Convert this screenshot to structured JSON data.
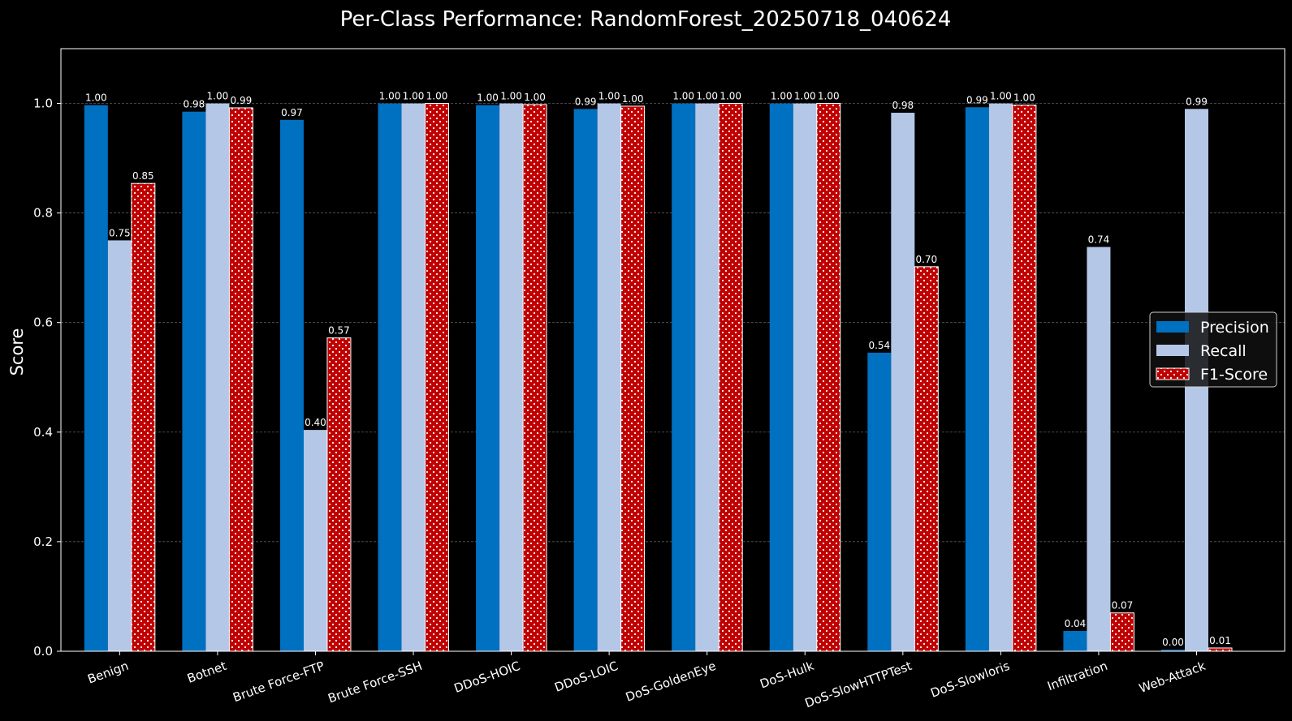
{
  "chart_data": {
    "type": "bar",
    "title": "Per-Class Performance: RandomForest_20250718_040624",
    "xlabel": "",
    "ylabel": "Score",
    "ylim": [
      0,
      1.1
    ],
    "yticks": [
      0.0,
      0.2,
      0.4,
      0.6,
      0.8,
      1.0
    ],
    "ytick_labels": [
      "0.0",
      "0.2",
      "0.4",
      "0.6",
      "0.8",
      "1.0"
    ],
    "grid": "horizontal dashed",
    "legend_position": "center-right",
    "categories": [
      "Benign",
      "Botnet",
      "Brute Force-FTP",
      "Brute Force-SSH",
      "DDoS-HOIC",
      "DDoS-LOIC",
      "DoS-GoldenEye",
      "DoS-Hulk",
      "DoS-SlowHTTPTest",
      "DoS-Slowloris",
      "Infiltration",
      "Web-Attack"
    ],
    "series": [
      {
        "name": "Precision",
        "color": "#0070c0",
        "pattern": "solid",
        "values": [
          0.997,
          0.985,
          0.97,
          1.0,
          0.997,
          0.99,
          1.0,
          1.0,
          0.545,
          0.993,
          0.037,
          0.003
        ],
        "labels": [
          "1.00",
          "0.98",
          "0.97",
          "1.00",
          "1.00",
          "0.99",
          "1.00",
          "1.00",
          "0.54",
          "0.99",
          "0.04",
          "0.00"
        ]
      },
      {
        "name": "Recall",
        "color": "#b4c7e7",
        "pattern": "solid",
        "values": [
          0.75,
          1.0,
          0.404,
          1.0,
          1.0,
          1.0,
          1.0,
          1.0,
          0.983,
          1.0,
          0.738,
          0.99
        ],
        "labels": [
          "0.75",
          "1.00",
          "0.40",
          "1.00",
          "1.00",
          "1.00",
          "1.00",
          "1.00",
          "0.98",
          "1.00",
          "0.74",
          "0.99"
        ]
      },
      {
        "name": "F1-Score",
        "color": "#c00000",
        "pattern": "dotted",
        "values": [
          0.854,
          0.992,
          0.572,
          1.0,
          0.998,
          0.995,
          1.0,
          1.0,
          0.702,
          0.997,
          0.07,
          0.006
        ],
        "labels": [
          "0.85",
          "0.99",
          "0.57",
          "1.00",
          "1.00",
          "1.00",
          "1.00",
          "1.00",
          "0.70",
          "1.00",
          "0.07",
          "0.01"
        ]
      }
    ]
  }
}
